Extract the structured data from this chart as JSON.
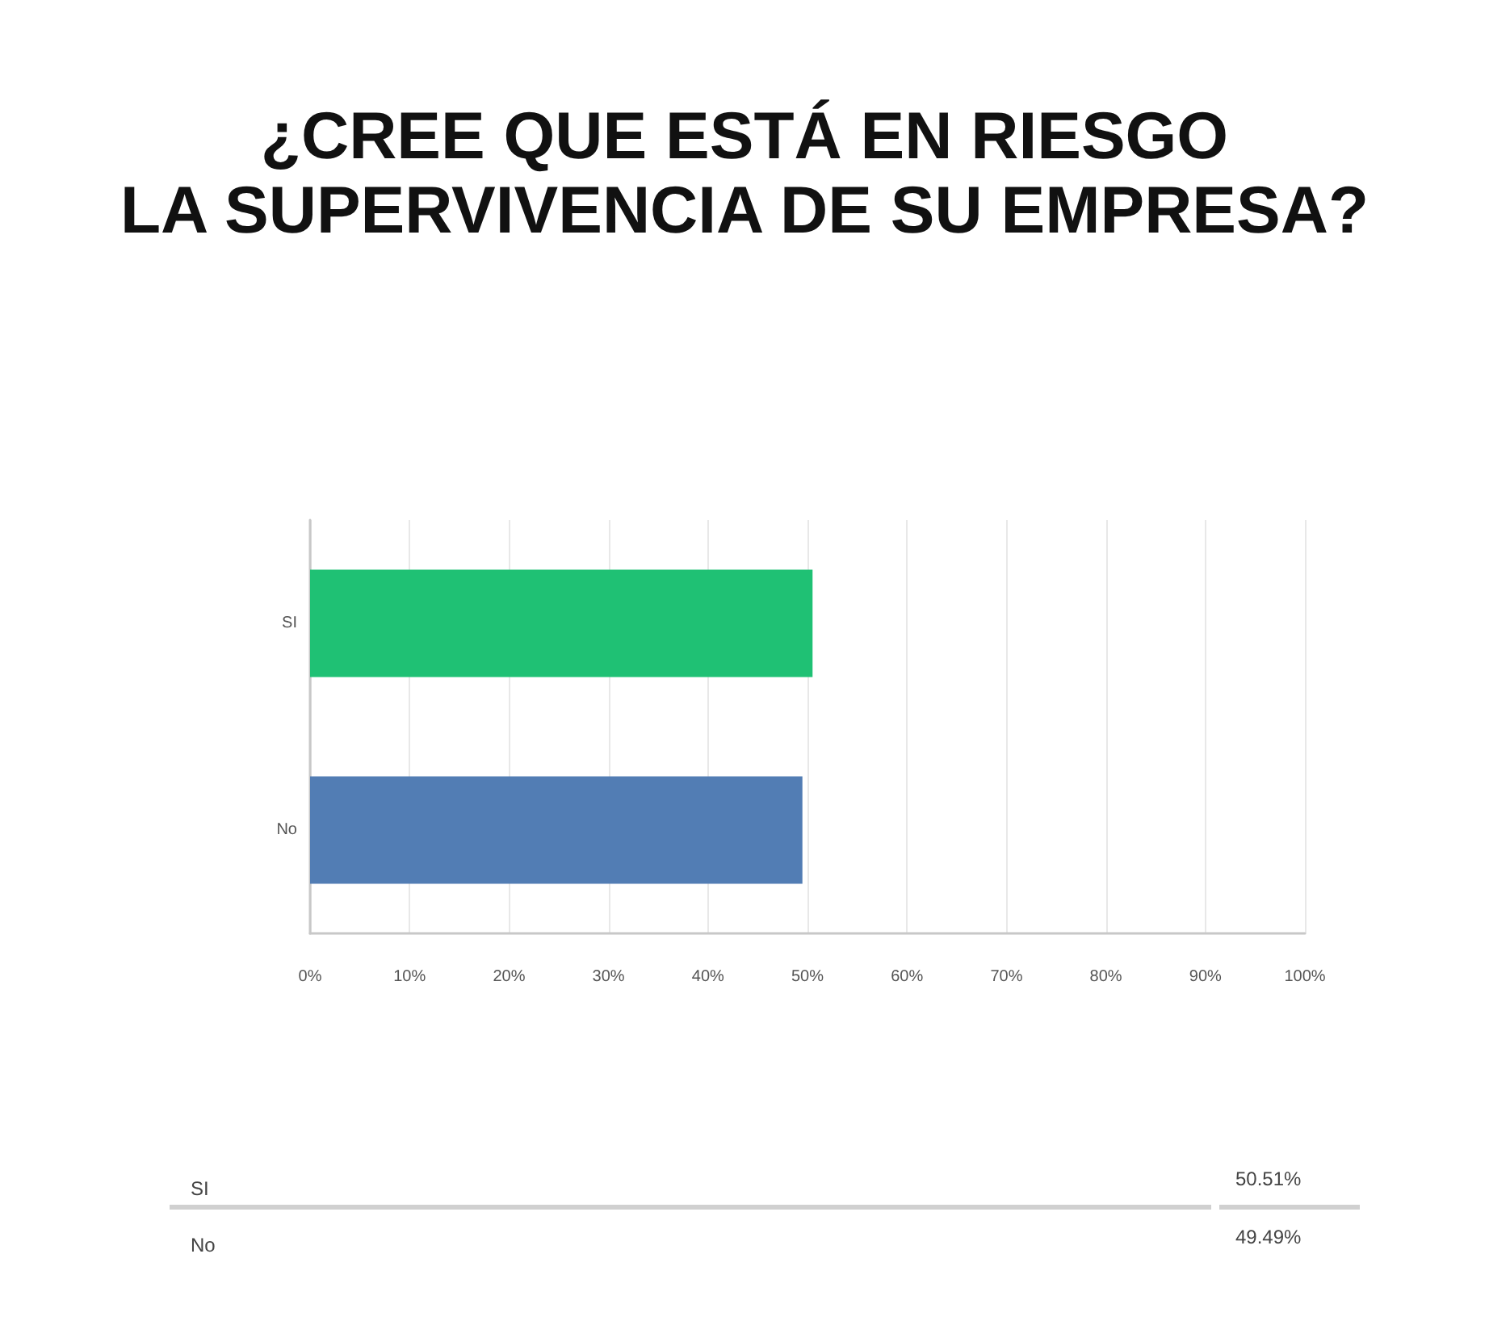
{
  "chart_data": {
    "type": "bar",
    "orientation": "horizontal",
    "title": "¿CREE QUE ESTÁ EN RIESGO\nLA SUPERVIVENCIA DE SU EMPRESA?",
    "categories": [
      "SI",
      "No"
    ],
    "values": [
      50.51,
      49.49
    ],
    "colors": [
      "#1fc174",
      "#527db4"
    ],
    "annotations": [
      "50.51%",
      "49.49%"
    ],
    "xlim": [
      0,
      100
    ],
    "xticks": [
      {
        "value": 0,
        "label": "0%"
      },
      {
        "value": 10,
        "label": "10%"
      },
      {
        "value": 20,
        "label": "20%"
      },
      {
        "value": 30,
        "label": "30%"
      },
      {
        "value": 40,
        "label": "40%"
      },
      {
        "value": 50,
        "label": "50%"
      },
      {
        "value": 60,
        "label": "60%"
      },
      {
        "value": 70,
        "label": "70%"
      },
      {
        "value": 80,
        "label": "80%"
      },
      {
        "value": 90,
        "label": "90%"
      },
      {
        "value": 100,
        "label": "100%"
      }
    ],
    "grid": "x"
  }
}
